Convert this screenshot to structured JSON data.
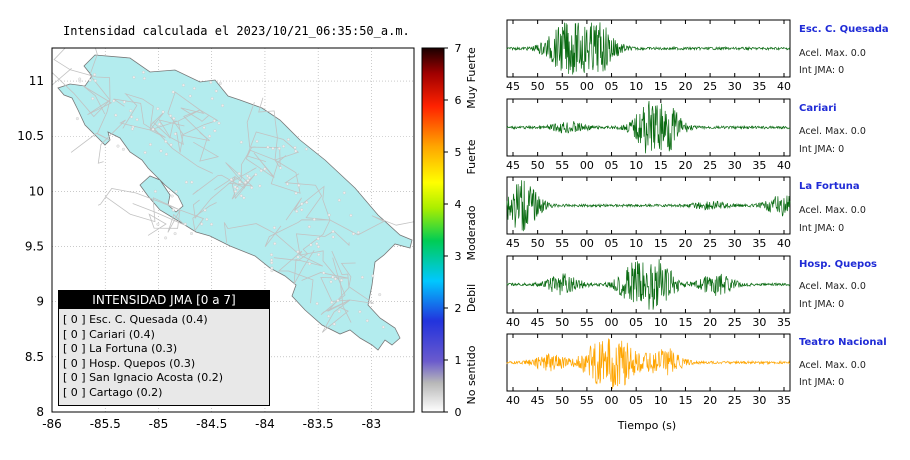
{
  "title": "Intensidad calculada el 2023/10/21_06:35:50_a.m.",
  "map": {
    "x_ticks": [
      "-86",
      "-85.5",
      "-85",
      "-84.5",
      "-84",
      "-83.5",
      "-83"
    ],
    "y_ticks": [
      "11",
      "10.5",
      "10",
      "9.5",
      "9",
      "8.5",
      "8"
    ],
    "land_color": "#b3ecee",
    "road_color": "#c2c2c2"
  },
  "colorbar": {
    "ticks": [
      "7",
      "6",
      "5",
      "4",
      "3",
      "2",
      "1",
      "0"
    ],
    "labels": [
      "Muy Fuerte",
      "Fuerte",
      "Moderado",
      "Debil",
      "No sentido"
    ]
  },
  "legend": {
    "header": "INTENSIDAD JMA [0 a 7]",
    "rows": [
      "[ 0 ]  Esc. C. Quesada (0.4)",
      "[ 0 ]  Cariari (0.4)",
      "[ 0 ]  La Fortuna (0.3)",
      "[ 0 ]  Hosp. Quepos (0.3)",
      "[ 0 ]  San Ignacio Acosta (0.2)",
      "[ 0 ]  Cartago (0.2)"
    ]
  },
  "stations": [
    {
      "name": "Esc. C. Quesada",
      "acel": "Acel. Max. 0.0",
      "int": "Int JMA: 0",
      "color": "#0a6b12",
      "ticks": [
        "45",
        "50",
        "55",
        "00",
        "05",
        "10",
        "15",
        "20",
        "25",
        "30",
        "35",
        "40"
      ]
    },
    {
      "name": "Cariari",
      "acel": "Acel. Max. 0.0",
      "int": "Int JMA: 0",
      "color": "#0a6b12",
      "ticks": [
        "45",
        "50",
        "55",
        "00",
        "05",
        "10",
        "15",
        "20",
        "25",
        "30",
        "35",
        "40"
      ]
    },
    {
      "name": "La Fortuna",
      "acel": "Acel. Max. 0.0",
      "int": "Int JMA: 0",
      "color": "#0a6b12",
      "ticks": [
        "45",
        "50",
        "55",
        "00",
        "05",
        "10",
        "15",
        "20",
        "25",
        "30",
        "35",
        "40"
      ]
    },
    {
      "name": "Hosp. Quepos",
      "acel": "Acel. Max. 0.0",
      "int": "Int JMA: 0",
      "color": "#0a6b12",
      "ticks": [
        "40",
        "45",
        "50",
        "55",
        "00",
        "05",
        "10",
        "15",
        "20",
        "25",
        "30",
        "35"
      ]
    },
    {
      "name": "Teatro Nacional",
      "acel": "Acel. Max. 0.0",
      "int": "Int JMA: 0",
      "color": "#ffa500",
      "ticks": [
        "40",
        "45",
        "50",
        "55",
        "00",
        "05",
        "10",
        "15",
        "20",
        "25",
        "30",
        "35"
      ]
    }
  ],
  "xlabel": "Tiempo (s)",
  "chart_data": [
    {
      "type": "heatmap",
      "title": "Intensidad calculada el 2023/10/21_06:35:50_a.m.",
      "xlim": [
        -86,
        -82.6
      ],
      "ylim": [
        8,
        11.3
      ],
      "scale": {
        "min": 0,
        "max": 7
      },
      "series": [
        {
          "name": "Esc. C. Quesada",
          "intensity": 0.4
        },
        {
          "name": "Cariari",
          "intensity": 0.4
        },
        {
          "name": "La Fortuna",
          "intensity": 0.3
        },
        {
          "name": "Hosp. Quepos",
          "intensity": 0.3
        },
        {
          "name": "San Ignacio Acosta",
          "intensity": 0.2
        },
        {
          "name": "Cartago",
          "intensity": 0.2
        }
      ]
    },
    {
      "type": "line",
      "xlabel": "Tiempo (s)",
      "series": [
        {
          "name": "Esc. C. Quesada",
          "acel_max": 0.0,
          "int_jma": 0
        },
        {
          "name": "Cariari",
          "acel_max": 0.0,
          "int_jma": 0
        },
        {
          "name": "La Fortuna",
          "acel_max": 0.0,
          "int_jma": 0
        },
        {
          "name": "Hosp. Quepos",
          "acel_max": 0.0,
          "int_jma": 0
        },
        {
          "name": "Teatro Nacional",
          "acel_max": 0.0,
          "int_jma": 0
        }
      ]
    }
  ]
}
